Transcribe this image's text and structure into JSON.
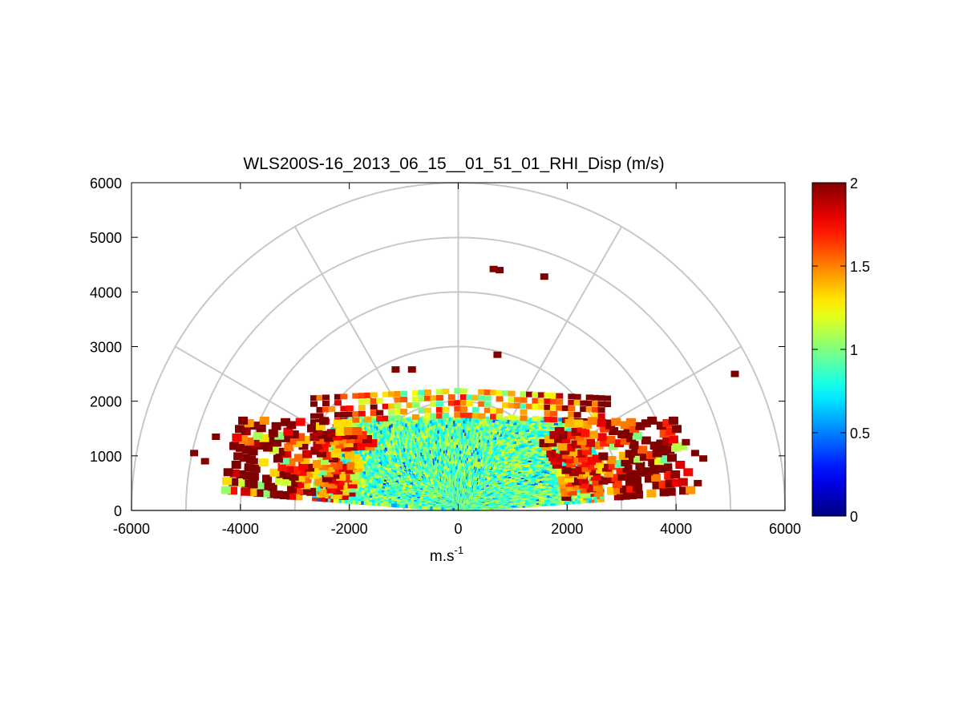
{
  "chart_data": {
    "type": "heatmap",
    "subtype": "polar-rhi-scan",
    "title": "WLS200S-16_2013_06_15__01_51_01_RHI_Disp (m/s)",
    "xlabel_base": "m.s",
    "xlabel_exp": "-1",
    "ylabel": "",
    "xlim": [
      -6000,
      6000
    ],
    "ylim": [
      0,
      6000
    ],
    "x_ticks": [
      -6000,
      -4000,
      -2000,
      0,
      2000,
      4000,
      6000
    ],
    "x_tick_labels": [
      "-6000",
      "-4000",
      "-2000",
      "0",
      "2000",
      "4000",
      "6000"
    ],
    "y_ticks": [
      0,
      1000,
      2000,
      3000,
      4000,
      5000,
      6000
    ],
    "y_tick_labels": [
      "0",
      "1000",
      "2000",
      "3000",
      "4000",
      "5000",
      "6000"
    ],
    "polar_grid": {
      "range_rings": [
        1000,
        2000,
        3000,
        4000,
        5000,
        6000
      ],
      "spoke_angles_deg": [
        0,
        30,
        60,
        90,
        120,
        150,
        180
      ]
    },
    "colorbar": {
      "colormap": "jet",
      "range": [
        0,
        2
      ],
      "ticks": [
        0,
        0.5,
        1,
        1.5,
        2
      ],
      "tick_labels": [
        "0",
        "0.5",
        "1",
        "1.5",
        "2"
      ]
    },
    "scan": {
      "elevation_deg": [
        0,
        180
      ],
      "dense_core": {
        "range_m": [
          0,
          2900
        ],
        "elevation_deg": [
          4,
          176
        ],
        "value_mean": 0.95
      },
      "outer_band": {
        "range_m": [
          2000,
          4300
        ],
        "elevation_deg": [
          5,
          38
        ],
        "value_mean": 1.75
      },
      "layer_band": {
        "height_m": [
          1750,
          2250
        ],
        "x_m": [
          -2650,
          2800
        ],
        "value_mean": 1.3
      },
      "notes": "Doppler spectral dispersion (m/s) on an RHI scan; low-level values near 1 m/s, higher values (1.5-2 m/s) toward the outer edge and the ~2000 m layer."
    },
    "isolated_cells": [
      {
        "x": 650,
        "y": 4420,
        "value": 2
      },
      {
        "x": 760,
        "y": 4400,
        "value": 2
      },
      {
        "x": 1580,
        "y": 4280,
        "value": 2
      },
      {
        "x": 720,
        "y": 2850,
        "value": 2
      },
      {
        "x": -1150,
        "y": 2580,
        "value": 2
      },
      {
        "x": -850,
        "y": 2580,
        "value": 2
      },
      {
        "x": 5080,
        "y": 2500,
        "value": 2
      },
      {
        "x": 4180,
        "y": 1250,
        "value": 2
      },
      {
        "x": 4350,
        "y": 1050,
        "value": 2
      },
      {
        "x": 4500,
        "y": 950,
        "value": 2
      },
      {
        "x": 4400,
        "y": 500,
        "value": 2
      },
      {
        "x": -4850,
        "y": 1050,
        "value": 2
      },
      {
        "x": -4650,
        "y": 900,
        "value": 2
      },
      {
        "x": -4450,
        "y": 1350,
        "value": 2
      },
      {
        "x": -4100,
        "y": 1200,
        "value": 2
      },
      {
        "x": -3750,
        "y": 900,
        "value": 2
      }
    ]
  }
}
